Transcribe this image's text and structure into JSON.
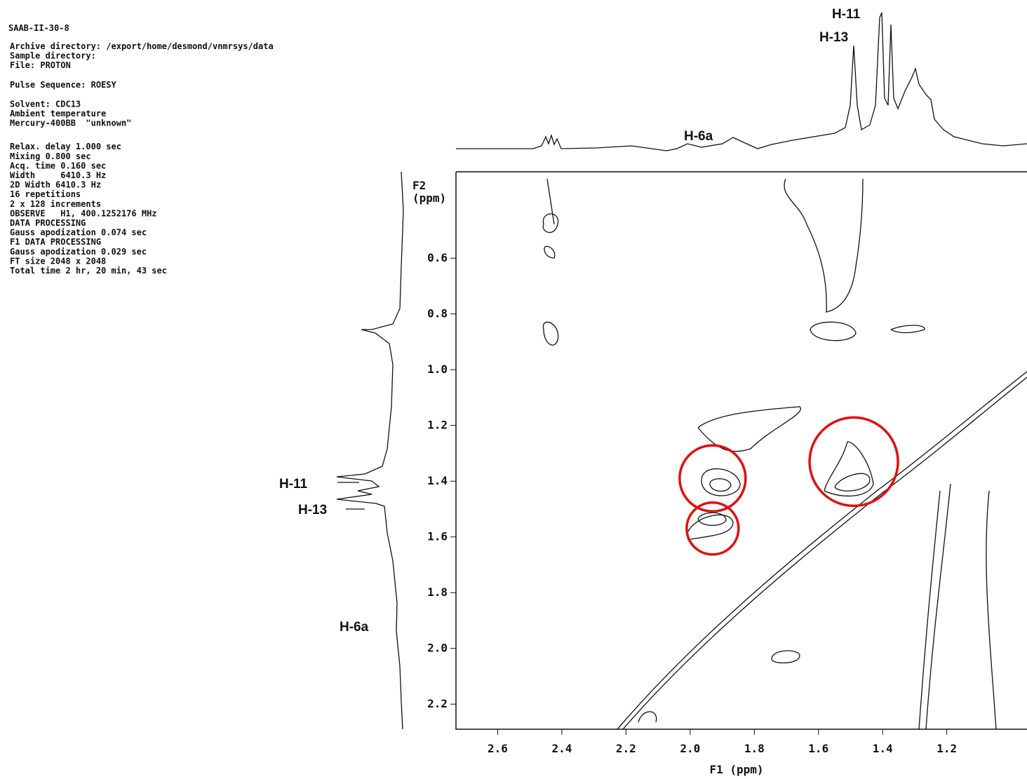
{
  "chart_data": {
    "type": "nmr-2d",
    "sample": "SAAB-II-30-8",
    "parameters": [
      [
        "Archive directory: /export/home/desmond/vnmrsys/data",
        "Sample directory:",
        "File: PROTON"
      ],
      [
        "Pulse Sequence: ROESY"
      ],
      [
        "Solvent: CDC13",
        "Ambient temperature",
        "Mercury-400BB  \"unknown\""
      ],
      [
        "Relax. delay 1.000 sec",
        "Mixing 0.800 sec",
        "Acq. time 0.160 sec",
        "Width     6410.3 Hz",
        "2D Width 6410.3 Hz",
        "16 repetitions",
        "2 x 128 increments",
        "OBSERVE   H1, 400.1252176 MHz",
        "DATA PROCESSING",
        "Gauss apodization 0.074 sec",
        "F1 DATA PROCESSING",
        "Gauss apodization 0.029 sec",
        "FT size 2048 x 2048",
        "Total time 2 hr, 20 min, 43 sec"
      ]
    ],
    "x_label": "F1 (ppm)",
    "y_label": "F2 (ppm)",
    "xlim": [
      2.73,
      0.95
    ],
    "ylim": [
      0.29,
      2.29
    ],
    "xticks": [
      2.6,
      2.4,
      2.2,
      {
        "value": 2,
        "label": "2.0"
      },
      1.8,
      1.6,
      1.4,
      1.2
    ],
    "yticks": [
      0.6,
      0.8,
      {
        "value": 1,
        "label": "1.0"
      },
      1.2,
      1.4,
      1.6,
      1.8,
      {
        "value": 2,
        "label": "2.0"
      },
      2.2
    ],
    "peak_labels": [
      "H-11",
      "H-13",
      "H-6a"
    ],
    "highlight_color": "#e01010",
    "highlighted_crosspeaks": {
      "x": [
        1.93,
        1.93,
        1.49
      ],
      "y": [
        1.39,
        1.57,
        1.33
      ]
    }
  }
}
